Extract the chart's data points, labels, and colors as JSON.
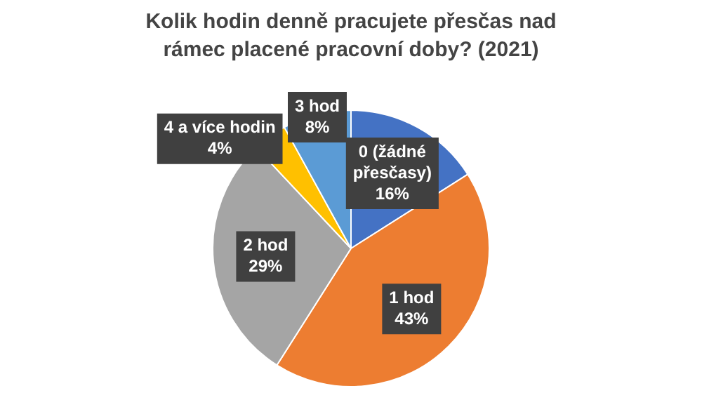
{
  "chart_data": {
    "type": "pie",
    "title": "Kolik hodin denně pracujete přesčas nad rámec placené pracovní doby? (2021)",
    "categories": [
      "0 (žádné přesčasy)",
      "1 hod",
      "2 hod",
      "4 a více hodin",
      "3 hod"
    ],
    "values": [
      16,
      43,
      29,
      4,
      8
    ],
    "value_labels": [
      "16%",
      "43%",
      "29%",
      "4%",
      "8%"
    ],
    "colors": [
      "#4472c4",
      "#ed7d31",
      "#a5a5a5",
      "#ffc000",
      "#5b9bd5"
    ],
    "legend": false
  }
}
